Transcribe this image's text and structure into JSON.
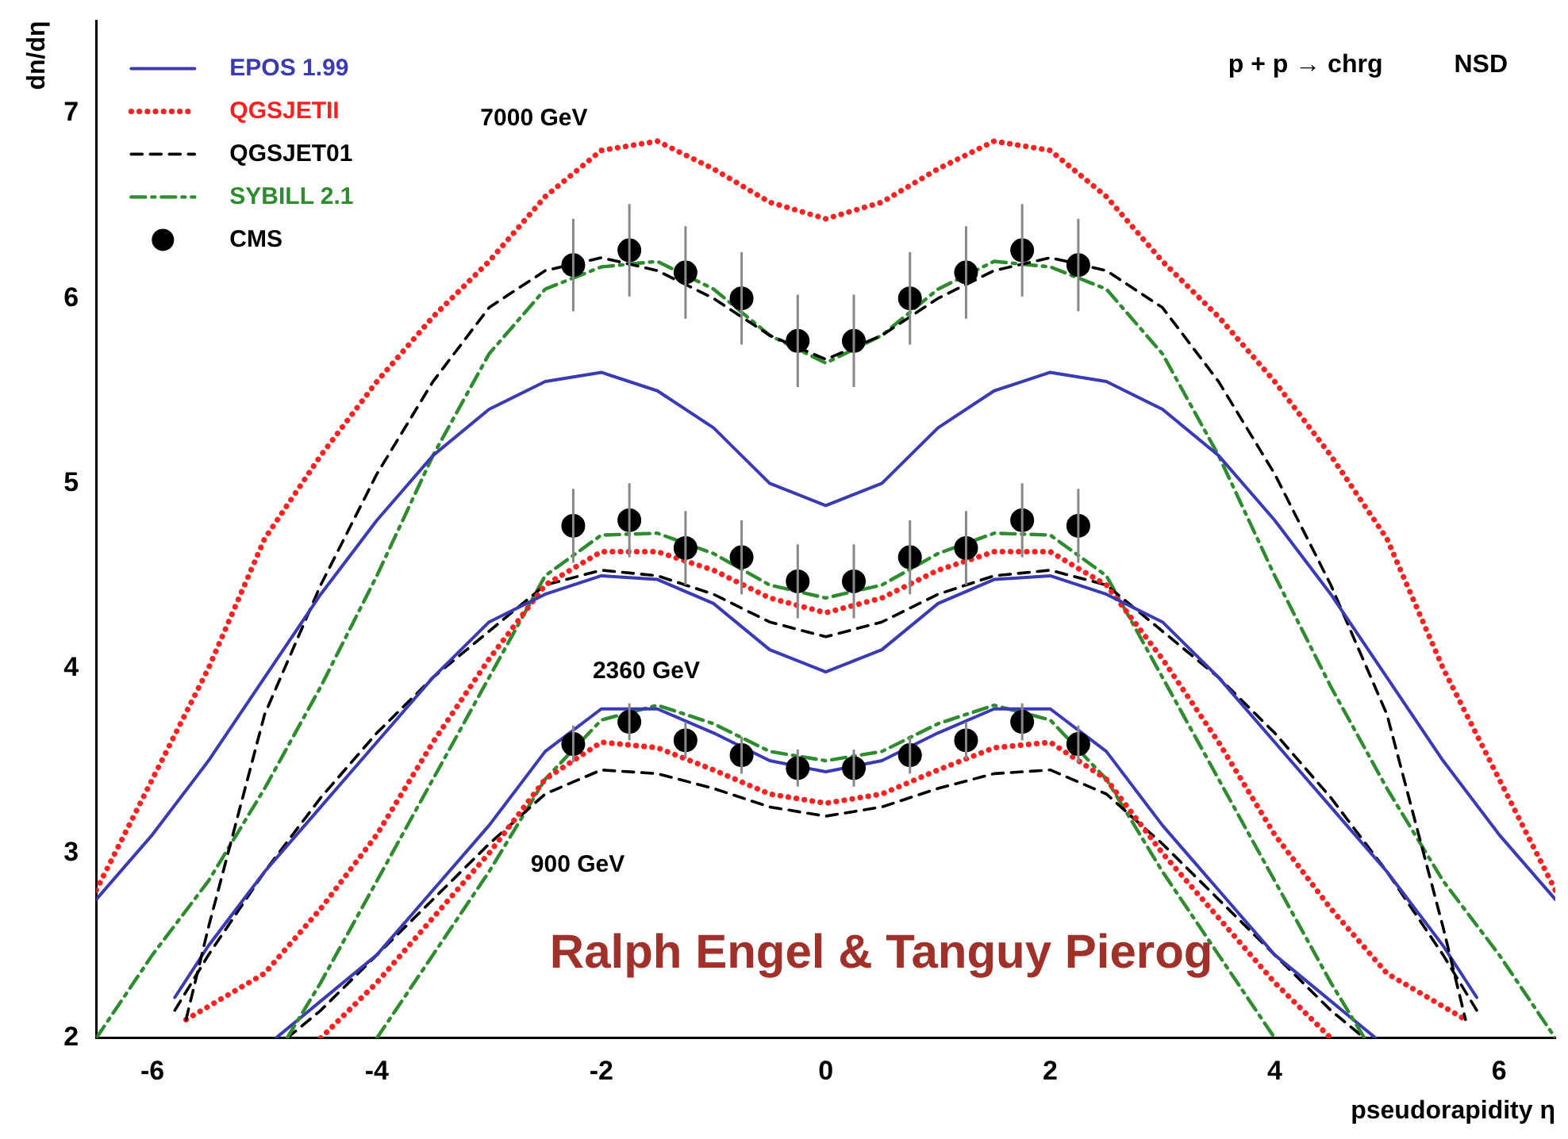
{
  "chart_data": {
    "type": "line",
    "xlabel": "pseudorapidity η",
    "ylabel": "dn/dη",
    "xlim": [
      -6.5,
      6.5
    ],
    "ylim": [
      2,
      7.5
    ],
    "xticks": [
      -6,
      -4,
      -2,
      0,
      2,
      4,
      6
    ],
    "yticks": [
      2,
      3,
      4,
      5,
      6,
      7
    ],
    "grid": false,
    "legend": "top left",
    "marker": "none",
    "annotations": [
      "7000 GeV",
      "2360 GeV",
      "900 GeV",
      "p + p → chrg",
      "NSD",
      "Ralph Engel & Tanguy Pierog"
    ],
    "series": [
      {
        "name": "EPOS 1.99",
        "color": "#3a3ab4",
        "line_style": "solid",
        "x": [
          -6.5,
          -6,
          -5.5,
          -5,
          -4.5,
          -4,
          -3.5,
          -3,
          -2.5,
          -2,
          -1.5,
          -1,
          -0.5,
          0,
          0.5,
          1,
          1.5,
          2,
          2.5,
          3,
          3.5,
          4,
          4.5,
          5,
          5.5,
          6,
          6.5
        ],
        "values": [
          2.75,
          3.1,
          3.5,
          3.95,
          4.4,
          4.8,
          5.15,
          5.4,
          5.55,
          5.6,
          5.5,
          5.3,
          5.0,
          4.88,
          5.0,
          5.3,
          5.5,
          5.6,
          5.55,
          5.4,
          5.15,
          4.8,
          4.4,
          3.95,
          3.5,
          3.1,
          2.75
        ]
      },
      {
        "name": "QGSJETII",
        "color": "#ff2020",
        "line_style": "dotted",
        "x": [
          -6.5,
          -6,
          -5.5,
          -5,
          -4.5,
          -4,
          -3.5,
          -3,
          -2.5,
          -2,
          -1.5,
          -1,
          -0.5,
          0,
          0.5,
          1,
          1.5,
          2,
          2.5,
          3,
          3.5,
          4,
          4.5,
          5,
          5.5,
          6,
          6.5
        ],
        "values": [
          2.8,
          3.4,
          4.0,
          4.7,
          5.15,
          5.55,
          5.9,
          6.2,
          6.55,
          6.8,
          6.85,
          6.7,
          6.52,
          6.43,
          6.52,
          6.7,
          6.85,
          6.8,
          6.55,
          6.2,
          5.9,
          5.55,
          5.15,
          4.7,
          4.0,
          3.4,
          2.8
        ]
      },
      {
        "name": "QGSJET01",
        "color": "#000000",
        "line_style": "dashed",
        "x": [
          -5.7,
          -5.5,
          -5,
          -4.5,
          -4,
          -3.5,
          -3,
          -2.5,
          -2,
          -1.5,
          -1,
          -0.5,
          0,
          0.5,
          1,
          1.5,
          2,
          2.5,
          3,
          3.5,
          4,
          4.5,
          5,
          5.5,
          5.7
        ],
        "values": [
          2.1,
          2.6,
          3.75,
          4.45,
          5.05,
          5.55,
          5.95,
          6.15,
          6.22,
          6.15,
          6.0,
          5.8,
          5.67,
          5.8,
          6.0,
          6.15,
          6.22,
          6.15,
          5.95,
          5.55,
          5.05,
          4.45,
          3.75,
          2.6,
          2.1
        ]
      },
      {
        "name": "SYBILL 2.1",
        "color": "#2e8b2e",
        "line_style": "dashdot",
        "x": [
          -6.5,
          -6,
          -5.5,
          -5,
          -4.5,
          -4,
          -3.5,
          -3,
          -2.5,
          -2,
          -1.5,
          -1,
          -0.5,
          0,
          0.5,
          1,
          1.5,
          2,
          2.5,
          3,
          3.5,
          4,
          4.5,
          5,
          5.5,
          6,
          6.5
        ],
        "values": [
          2.0,
          2.45,
          2.85,
          3.35,
          3.9,
          4.5,
          5.15,
          5.7,
          6.05,
          6.17,
          6.2,
          6.05,
          5.8,
          5.65,
          5.8,
          6.05,
          6.2,
          6.17,
          6.05,
          5.7,
          5.15,
          4.5,
          3.9,
          3.35,
          2.85,
          2.45,
          2.0
        ]
      },
      {
        "color": "#3a3ab4",
        "line_style": "solid",
        "x": [
          -5.8,
          -5.5,
          -5,
          -4.5,
          -4,
          -3.5,
          -3,
          -2.5,
          -2,
          -1.5,
          -1,
          -0.5,
          0,
          0.5,
          1,
          1.5,
          2,
          2.5,
          3,
          3.5,
          4,
          4.5,
          5,
          5.5,
          5.8
        ],
        "values": [
          2.22,
          2.5,
          2.9,
          3.25,
          3.6,
          3.95,
          4.25,
          4.4,
          4.5,
          4.48,
          4.35,
          4.1,
          3.98,
          4.1,
          4.35,
          4.48,
          4.5,
          4.4,
          4.25,
          3.95,
          3.6,
          3.25,
          2.9,
          2.5,
          2.22
        ]
      },
      {
        "color": "#ff2020",
        "line_style": "dotted",
        "x": [
          -5.7,
          -5,
          -4.5,
          -4,
          -3.5,
          -3,
          -2.5,
          -2,
          -1.5,
          -1,
          -0.5,
          0,
          0.5,
          1,
          1.5,
          2,
          2.5,
          3,
          3.5,
          4,
          4.5,
          5,
          5.7
        ],
        "values": [
          2.1,
          2.35,
          2.7,
          3.1,
          3.6,
          4.05,
          4.45,
          4.63,
          4.63,
          4.53,
          4.38,
          4.3,
          4.38,
          4.53,
          4.63,
          4.63,
          4.45,
          4.05,
          3.6,
          3.1,
          2.7,
          2.35,
          2.1
        ]
      },
      {
        "color": "#000000",
        "line_style": "dashed",
        "x": [
          -5.8,
          -5.5,
          -5,
          -4.5,
          -4,
          -3.5,
          -3,
          -2.5,
          -2,
          -1.5,
          -1,
          -0.5,
          0,
          0.5,
          1,
          1.5,
          2,
          2.5,
          3,
          3.5,
          4,
          4.5,
          5,
          5.5,
          5.8
        ],
        "values": [
          2.15,
          2.45,
          2.9,
          3.3,
          3.65,
          3.95,
          4.2,
          4.45,
          4.53,
          4.5,
          4.4,
          4.25,
          4.17,
          4.25,
          4.4,
          4.5,
          4.53,
          4.45,
          4.2,
          3.95,
          3.65,
          3.3,
          2.9,
          2.45,
          2.15
        ]
      },
      {
        "color": "#2e8b2e",
        "line_style": "dashdot",
        "x": [
          -4.8,
          -4.5,
          -4,
          -3.5,
          -3,
          -2.5,
          -2,
          -1.5,
          -1,
          -0.5,
          0,
          0.5,
          1,
          1.5,
          2,
          2.5,
          3,
          3.5,
          4,
          4.5,
          4.8
        ],
        "values": [
          2.0,
          2.3,
          2.85,
          3.4,
          3.95,
          4.5,
          4.72,
          4.73,
          4.62,
          4.45,
          4.38,
          4.45,
          4.62,
          4.73,
          4.72,
          4.5,
          3.95,
          3.4,
          2.85,
          2.3,
          2.0
        ]
      },
      {
        "color": "#3a3ab4",
        "line_style": "solid",
        "x": [
          -4.9,
          -4.5,
          -4,
          -3.5,
          -3,
          -2.5,
          -2,
          -1.5,
          -1,
          -0.5,
          0,
          0.5,
          1,
          1.5,
          2,
          2.5,
          3,
          3.5,
          4,
          4.5,
          4.9
        ],
        "values": [
          2.0,
          2.2,
          2.45,
          2.8,
          3.15,
          3.55,
          3.78,
          3.78,
          3.65,
          3.5,
          3.44,
          3.5,
          3.65,
          3.78,
          3.78,
          3.55,
          3.15,
          2.8,
          2.45,
          2.2,
          2.0
        ]
      },
      {
        "color": "#ff2020",
        "line_style": "dotted",
        "x": [
          -4.5,
          -4,
          -3.5,
          -3,
          -2.5,
          -2,
          -1.5,
          -1,
          -0.5,
          0,
          0.5,
          1,
          1.5,
          2,
          2.5,
          3,
          3.5,
          4,
          4.5
        ],
        "values": [
          2.0,
          2.3,
          2.65,
          3.0,
          3.4,
          3.6,
          3.57,
          3.45,
          3.32,
          3.27,
          3.32,
          3.45,
          3.57,
          3.6,
          3.4,
          3.0,
          2.65,
          2.3,
          2.0
        ]
      },
      {
        "color": "#000000",
        "line_style": "dashed",
        "x": [
          -4.8,
          -4.5,
          -4,
          -3.5,
          -3,
          -2.5,
          -2,
          -1.5,
          -1,
          -0.5,
          0,
          0.5,
          1,
          1.5,
          2,
          2.5,
          3,
          3.5,
          4,
          4.5,
          4.8
        ],
        "values": [
          2.0,
          2.15,
          2.45,
          2.75,
          3.05,
          3.32,
          3.45,
          3.43,
          3.35,
          3.25,
          3.2,
          3.25,
          3.35,
          3.43,
          3.45,
          3.32,
          3.05,
          2.75,
          2.45,
          2.15,
          2.0
        ]
      },
      {
        "color": "#2e8b2e",
        "line_style": "dashdot",
        "x": [
          -4,
          -3.5,
          -3,
          -2.5,
          -2,
          -1.5,
          -1,
          -0.5,
          0,
          0.5,
          1,
          1.5,
          2,
          2.5,
          3,
          3.5,
          4
        ],
        "values": [
          2.0,
          2.45,
          2.9,
          3.4,
          3.72,
          3.8,
          3.7,
          3.55,
          3.5,
          3.55,
          3.7,
          3.8,
          3.72,
          3.4,
          2.9,
          2.45,
          2.0
        ]
      },
      {
        "name": "CMS",
        "type": "scatter",
        "marker": "circle",
        "color": "#000000",
        "x": [
          -2.25,
          -1.75,
          -1.25,
          -0.75,
          -0.25,
          0.25,
          0.75,
          1.25,
          1.75,
          2.25
        ],
        "values": [
          6.18,
          6.26,
          6.14,
          6.0,
          5.77,
          5.77,
          6.0,
          6.14,
          6.26,
          6.18
        ],
        "errors": [
          0.25,
          0.25,
          0.25,
          0.25,
          0.25,
          0.25,
          0.25,
          0.25,
          0.25,
          0.25
        ]
      },
      {
        "type": "scatter",
        "marker": "circle",
        "color": "#000000",
        "x": [
          -2.25,
          -1.75,
          -1.25,
          -0.75,
          -0.25,
          0.25,
          0.75,
          1.25,
          1.75,
          2.25
        ],
        "values": [
          4.77,
          4.8,
          4.65,
          4.6,
          4.47,
          4.47,
          4.6,
          4.65,
          4.8,
          4.77
        ],
        "errors": [
          0.2,
          0.2,
          0.2,
          0.2,
          0.2,
          0.2,
          0.2,
          0.2,
          0.2,
          0.2
        ]
      },
      {
        "type": "scatter",
        "marker": "circle",
        "color": "#000000",
        "x": [
          -2.25,
          -1.75,
          -1.25,
          -0.75,
          -0.25,
          0.25,
          0.75,
          1.25,
          1.75,
          2.25
        ],
        "values": [
          3.59,
          3.71,
          3.61,
          3.53,
          3.46,
          3.46,
          3.53,
          3.61,
          3.71,
          3.59
        ],
        "errors": [
          0.1,
          0.1,
          0.1,
          0.1,
          0.1,
          0.1,
          0.1,
          0.1,
          0.1,
          0.1
        ]
      }
    ]
  }
}
